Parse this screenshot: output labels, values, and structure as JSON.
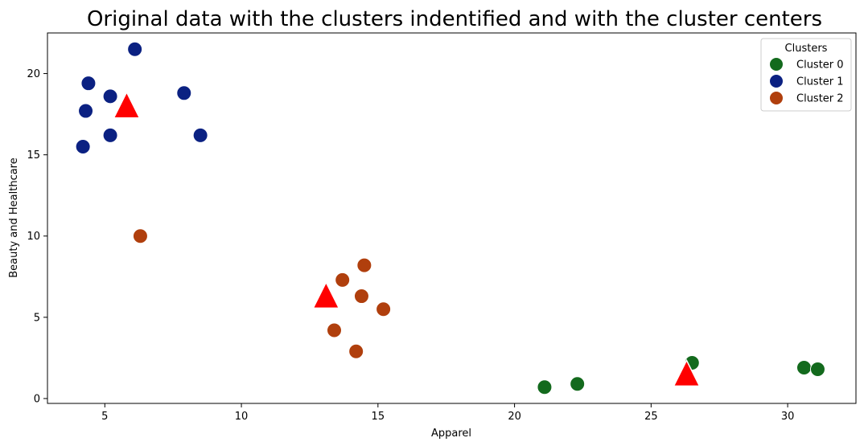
{
  "chart_data": {
    "type": "scatter",
    "title": "Original data with the clusters indentified and with the cluster centers",
    "xlabel": "Apparel",
    "ylabel": "Beauty and Healthcare",
    "xlim": [
      2.9,
      32.5
    ],
    "ylim": [
      -0.3,
      22.5
    ],
    "xticks": [
      5,
      10,
      15,
      20,
      25,
      30
    ],
    "yticks": [
      0,
      5,
      10,
      15,
      20
    ],
    "grid": false,
    "legend": {
      "title": "Clusters",
      "position": "top-right"
    },
    "series": [
      {
        "name": "Cluster 0",
        "color": "#136a1d",
        "points": [
          [
            21.1,
            0.7
          ],
          [
            22.3,
            0.9
          ],
          [
            26.5,
            2.2
          ],
          [
            30.6,
            1.9
          ],
          [
            31.1,
            1.8
          ]
        ]
      },
      {
        "name": "Cluster 1",
        "color": "#0b2182",
        "points": [
          [
            6.1,
            21.5
          ],
          [
            4.4,
            19.4
          ],
          [
            5.2,
            18.6
          ],
          [
            4.3,
            17.7
          ],
          [
            7.9,
            18.8
          ],
          [
            4.2,
            15.5
          ],
          [
            5.2,
            16.2
          ],
          [
            8.5,
            16.2
          ]
        ]
      },
      {
        "name": "Cluster 2",
        "color": "#b03f0d",
        "points": [
          [
            6.3,
            10.0
          ],
          [
            14.5,
            8.2
          ],
          [
            13.7,
            7.3
          ],
          [
            14.4,
            6.3
          ],
          [
            15.2,
            5.5
          ],
          [
            13.4,
            4.2
          ],
          [
            14.2,
            2.9
          ]
        ]
      }
    ],
    "centers": {
      "marker": "triangle",
      "color": "#ff0000",
      "points": [
        [
          5.8,
          17.9
        ],
        [
          13.1,
          6.2
        ],
        [
          26.3,
          1.4
        ]
      ]
    }
  }
}
